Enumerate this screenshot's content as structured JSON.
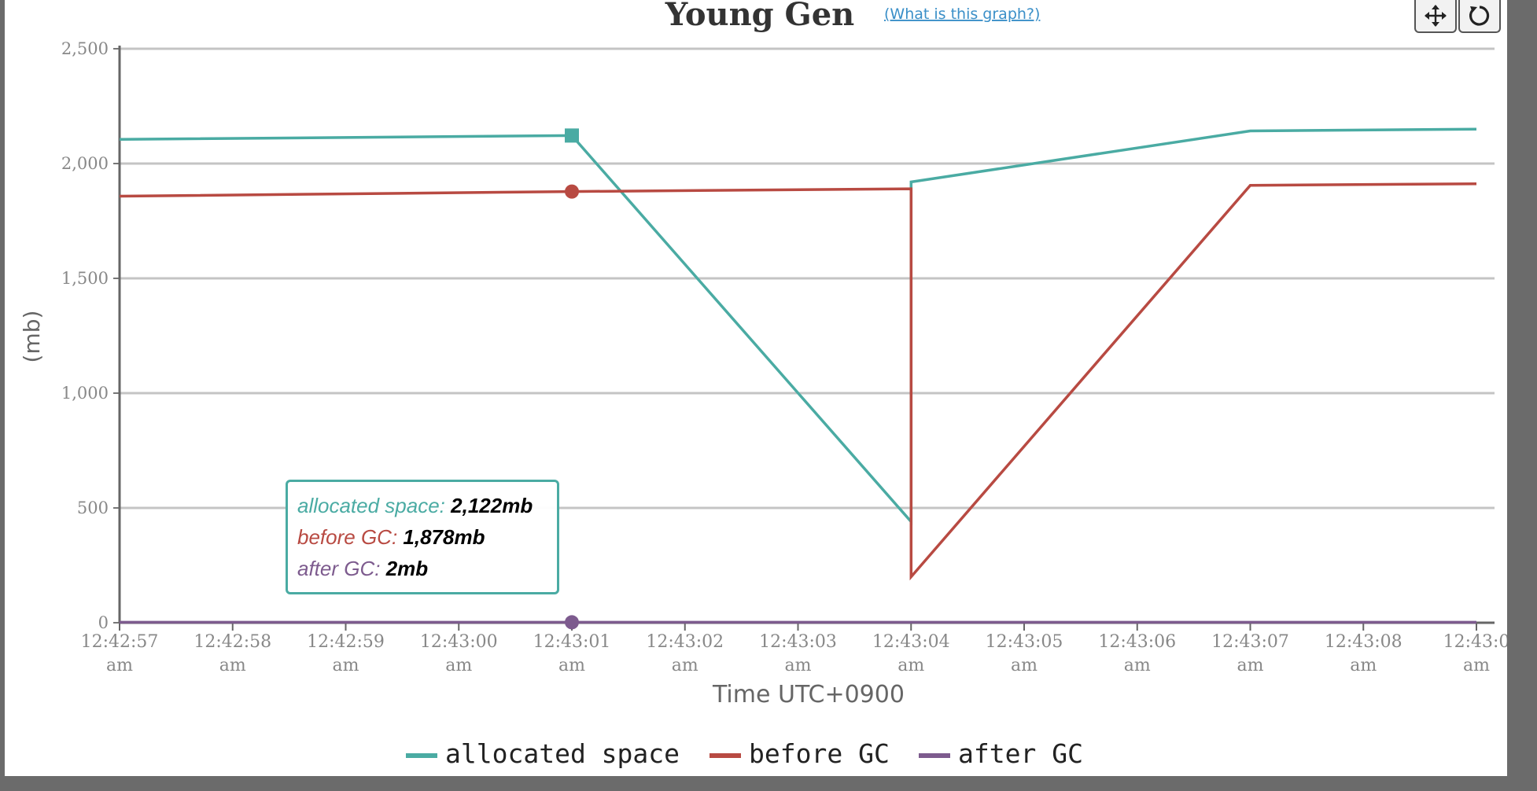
{
  "toolbar": {
    "pan_icon": "move-arrows-icon",
    "reset_icon": "reset-rotate-icon"
  },
  "tooltip": {
    "rows": [
      {
        "label": "allocated space:",
        "value": "2,122mb"
      },
      {
        "label": "before GC:",
        "value": "1,878mb"
      },
      {
        "label": "after GC:",
        "value": "2mb"
      }
    ]
  },
  "chart_data": {
    "type": "line",
    "title": "Young Gen",
    "help_link": "(What is this graph?)",
    "xlabel": "Time UTC+0900",
    "ylabel": "(mb)",
    "ylim": [
      0,
      2500
    ],
    "x_unit": "seconds",
    "xlim_seconds": [
      "12:42:57",
      "12:43:09"
    ],
    "x_ticks": [
      {
        "time": "12:42:57",
        "ampm": "am"
      },
      {
        "time": "12:42:58",
        "ampm": "am"
      },
      {
        "time": "12:42:59",
        "ampm": "am"
      },
      {
        "time": "12:43:00",
        "ampm": "am"
      },
      {
        "time": "12:43:01",
        "ampm": "am"
      },
      {
        "time": "12:43:02",
        "ampm": "am"
      },
      {
        "time": "12:43:03",
        "ampm": "am"
      },
      {
        "time": "12:43:04",
        "ampm": "am"
      },
      {
        "time": "12:43:05",
        "ampm": "am"
      },
      {
        "time": "12:43:06",
        "ampm": "am"
      },
      {
        "time": "12:43:07",
        "ampm": "am"
      },
      {
        "time": "12:43:08",
        "ampm": "am"
      },
      {
        "time": "12:43:0",
        "ampm": "am"
      }
    ],
    "y_ticks": [
      "0",
      "500",
      "1,000",
      "1,500",
      "2,000",
      "2,500"
    ],
    "grid": true,
    "legend_position": "bottom-center",
    "hover_x": "12:43:01",
    "series": [
      {
        "name": "allocated space",
        "color": "#4aaba3",
        "marker": "square",
        "points": [
          [
            "12:42:57",
            2105
          ],
          [
            "12:43:01",
            2122
          ],
          [
            "12:43:04",
            440
          ],
          [
            "12:43:04",
            1920
          ],
          [
            "12:43:07",
            2142
          ],
          [
            "12:43:09",
            2150
          ]
        ]
      },
      {
        "name": "before GC",
        "color": "#b84a42",
        "marker": "circle",
        "points": [
          [
            "12:42:57",
            1858
          ],
          [
            "12:43:01",
            1878
          ],
          [
            "12:43:04",
            1890
          ],
          [
            "12:43:04",
            200
          ],
          [
            "12:43:07",
            1905
          ],
          [
            "12:43:09",
            1912
          ]
        ]
      },
      {
        "name": "after GC",
        "color": "#7d5b8e",
        "marker": "circle",
        "points": [
          [
            "12:42:57",
            2
          ],
          [
            "12:43:01",
            2
          ],
          [
            "12:43:04",
            2
          ],
          [
            "12:43:07",
            2
          ],
          [
            "12:43:09",
            2
          ]
        ]
      }
    ]
  }
}
